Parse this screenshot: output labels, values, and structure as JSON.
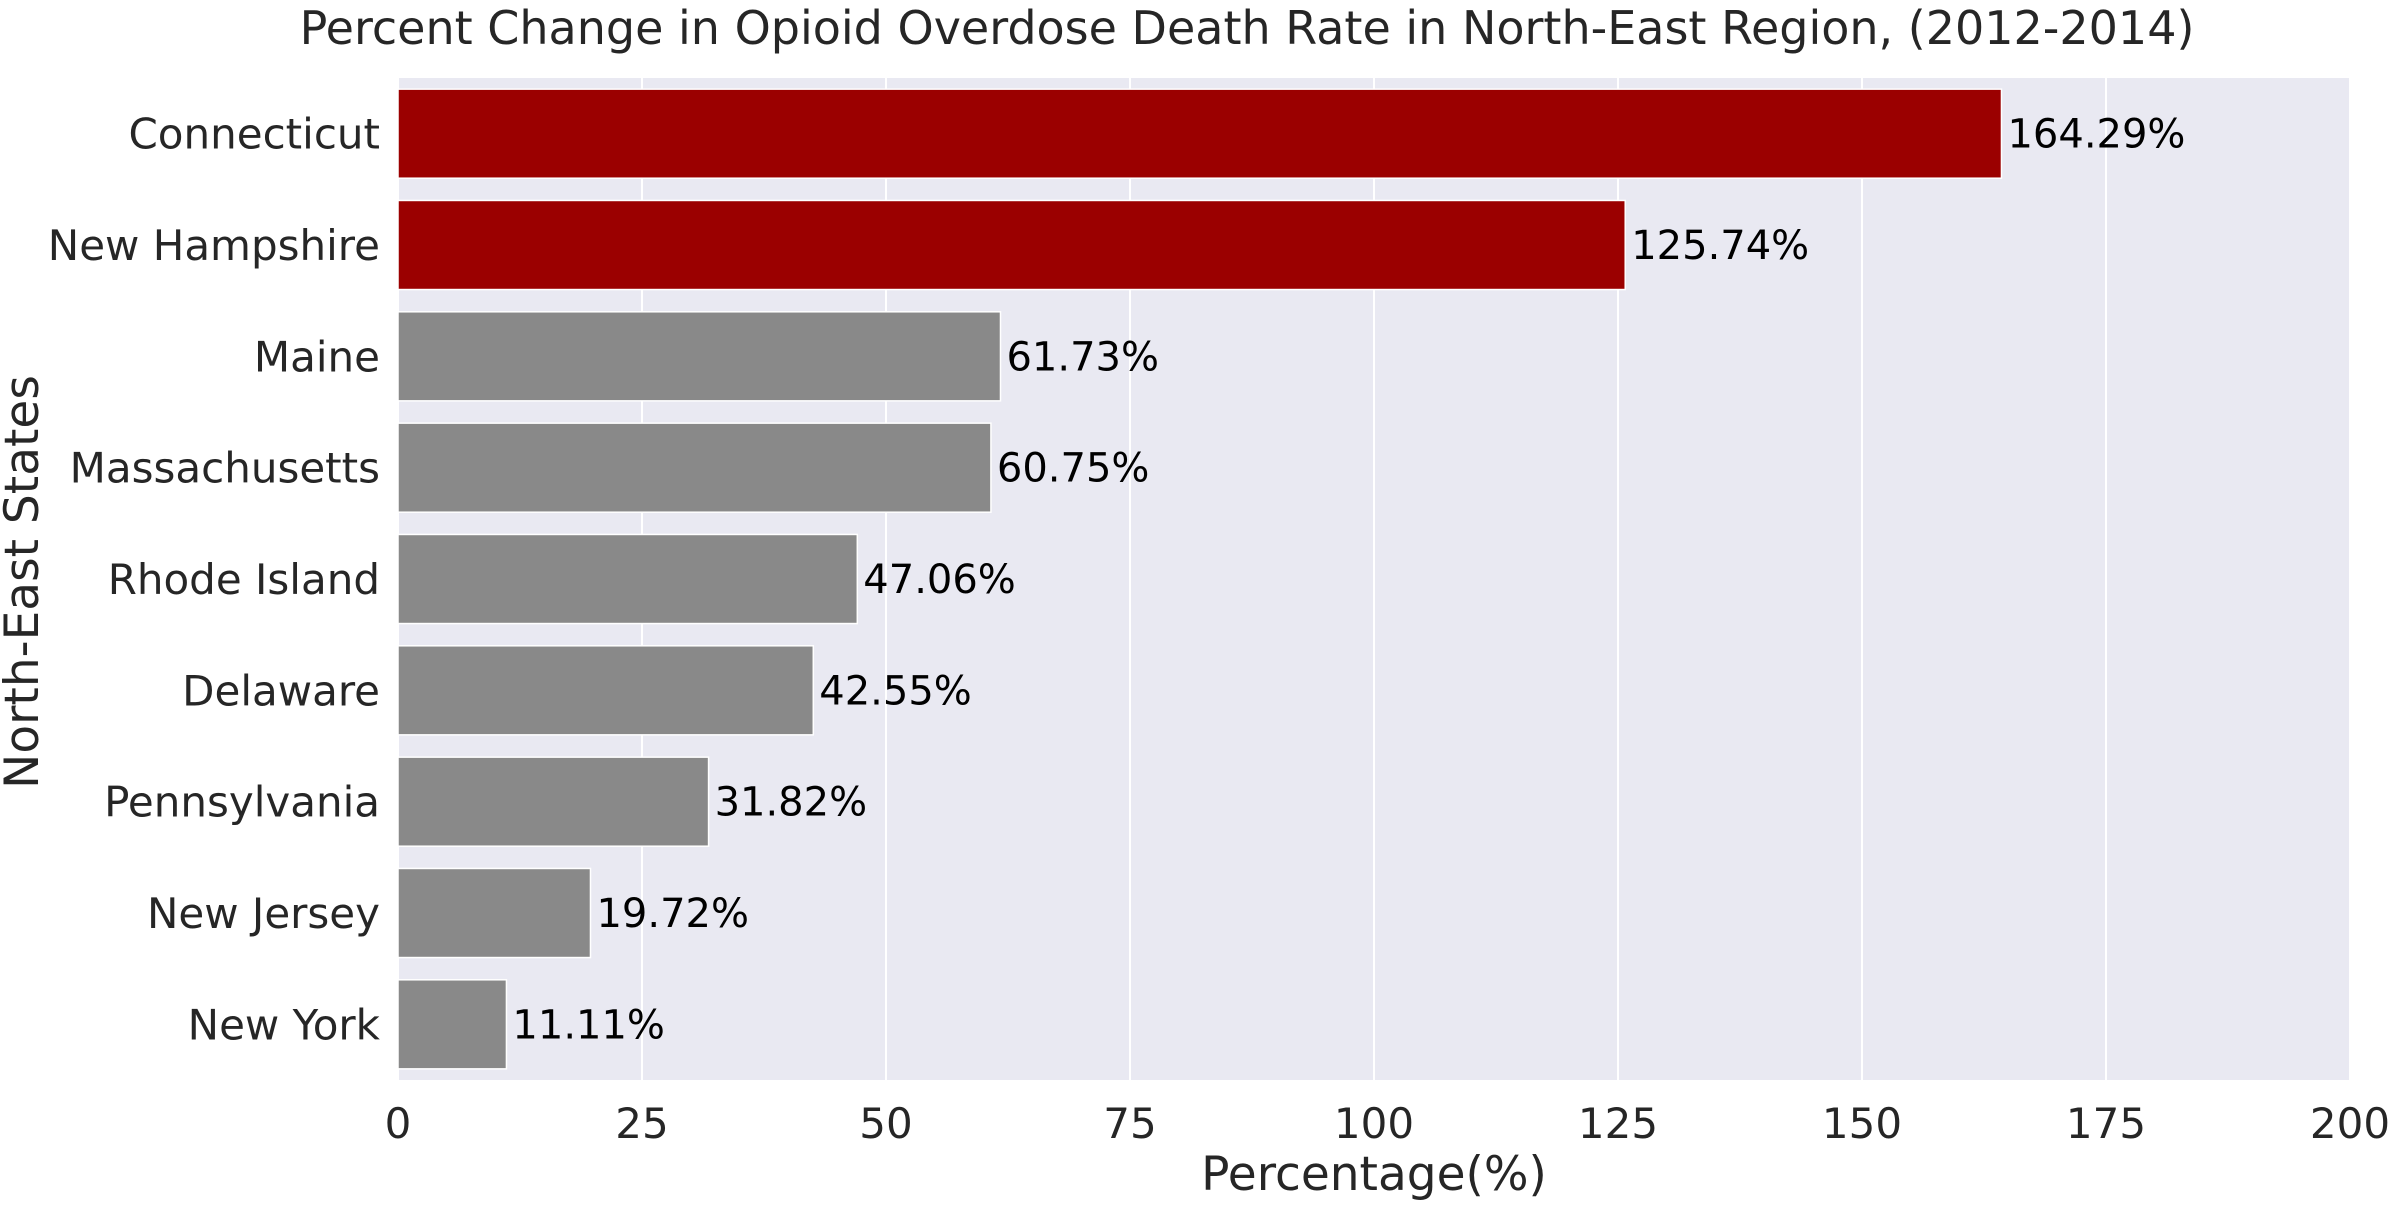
{
  "chart_data": {
    "type": "bar",
    "orientation": "horizontal",
    "title": "Percent Change in Opioid Overdose Death Rate in North-East Region, (2012-2014)",
    "xlabel": "Percentage(%)",
    "ylabel": "North-East States",
    "xlim": [
      0,
      200
    ],
    "xticks": [
      0,
      25,
      50,
      75,
      100,
      125,
      150,
      175,
      200
    ],
    "grid": true,
    "categories": [
      "Connecticut",
      "New Hampshire",
      "Maine",
      "Massachusetts",
      "Rhode Island",
      "Delaware",
      "Pennsylvania",
      "New Jersey",
      "New York"
    ],
    "values": [
      164.29,
      125.74,
      61.73,
      60.75,
      47.06,
      42.55,
      31.82,
      19.72,
      11.11
    ],
    "data_labels": [
      "164.29%",
      "125.74%",
      "61.73%",
      "60.75%",
      "47.06%",
      "42.55%",
      "31.82%",
      "19.72%",
      "11.11%"
    ],
    "bar_colors": [
      "#9b0000",
      "#9b0000",
      "#898989",
      "#898989",
      "#898989",
      "#898989",
      "#898989",
      "#898989",
      "#898989"
    ],
    "background_color": "#e9e9f2",
    "grid_color": "#ffffff"
  }
}
